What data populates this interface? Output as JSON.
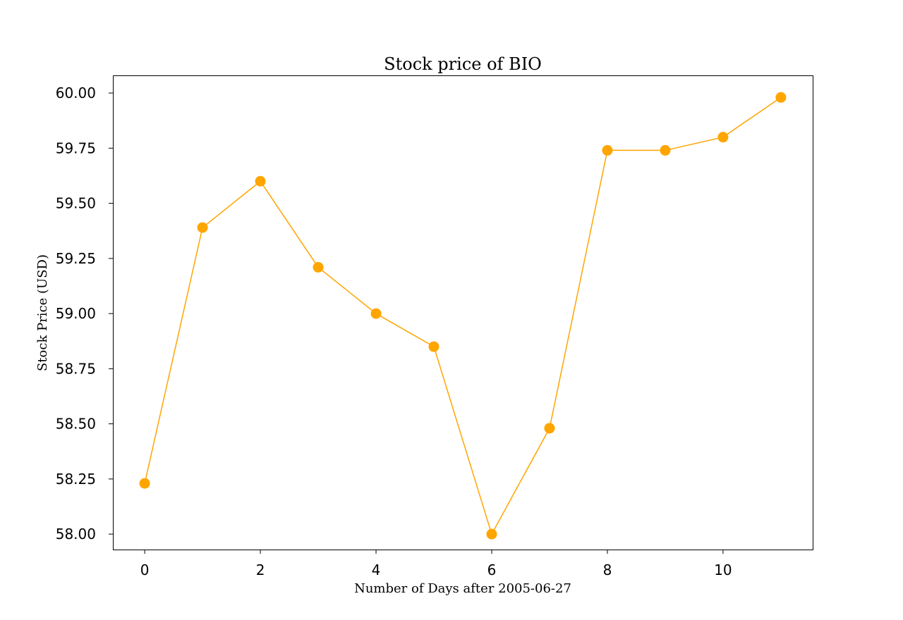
{
  "chart_data": {
    "type": "line",
    "title": "Stock price of BIO",
    "xlabel": "Number of Days after 2005-06-27",
    "ylabel": "Stock Price (USD)",
    "x": [
      0,
      1,
      2,
      3,
      4,
      5,
      6,
      7,
      8,
      9,
      10,
      11
    ],
    "series": [
      {
        "values": [
          58.23,
          59.39,
          59.6,
          59.21,
          59.0,
          58.85,
          58.0,
          58.48,
          59.74,
          59.74,
          59.8,
          59.98
        ]
      }
    ],
    "xlim": [
      -0.55,
      11.55
    ],
    "ylim": [
      57.93,
      60.08
    ],
    "xticks": [
      0,
      2,
      4,
      6,
      8,
      10
    ],
    "xtick_labels": [
      "0",
      "2",
      "4",
      "6",
      "8",
      "10"
    ],
    "yticks": [
      58.0,
      58.25,
      58.5,
      58.75,
      59.0,
      59.25,
      59.5,
      59.75,
      60.0
    ],
    "ytick_labels": [
      "58.00",
      "58.25",
      "58.50",
      "58.75",
      "59.00",
      "59.25",
      "59.50",
      "59.75",
      "60.00"
    ],
    "grid": false,
    "colors": {
      "series": "#FFA500",
      "axes": "#000000"
    }
  }
}
